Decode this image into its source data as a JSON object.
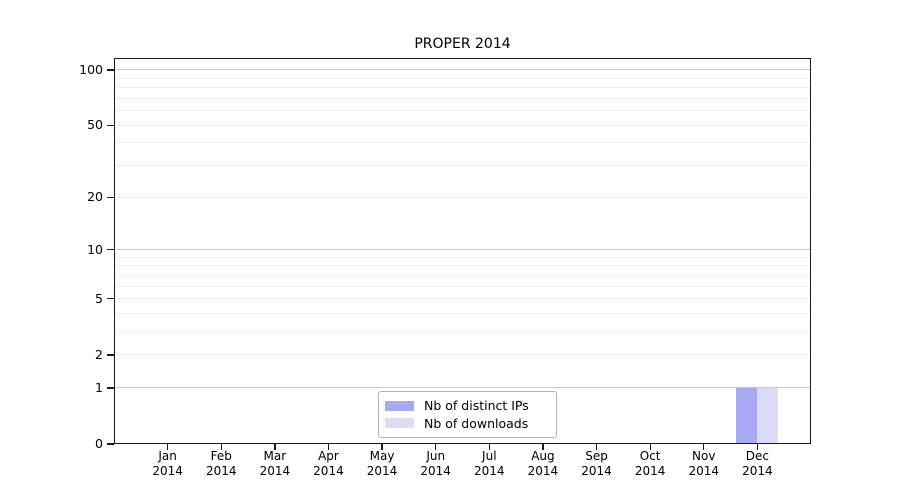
{
  "chart_data": {
    "type": "bar",
    "title": "PROPER 2014",
    "categories": [
      {
        "month": "Jan",
        "year": "2014"
      },
      {
        "month": "Feb",
        "year": "2014"
      },
      {
        "month": "Mar",
        "year": "2014"
      },
      {
        "month": "Apr",
        "year": "2014"
      },
      {
        "month": "May",
        "year": "2014"
      },
      {
        "month": "Jun",
        "year": "2014"
      },
      {
        "month": "Jul",
        "year": "2014"
      },
      {
        "month": "Aug",
        "year": "2014"
      },
      {
        "month": "Sep",
        "year": "2014"
      },
      {
        "month": "Oct",
        "year": "2014"
      },
      {
        "month": "Nov",
        "year": "2014"
      },
      {
        "month": "Dec",
        "year": "2014"
      }
    ],
    "series": [
      {
        "name": "Nb of distinct IPs",
        "color": "#a9a9f3",
        "values": [
          0,
          0,
          0,
          0,
          0,
          0,
          0,
          0,
          0,
          0,
          0,
          1
        ]
      },
      {
        "name": "Nb of downloads",
        "color": "#dcdcf8",
        "values": [
          0,
          0,
          0,
          0,
          0,
          0,
          0,
          0,
          0,
          0,
          0,
          1
        ]
      }
    ],
    "y_axis": {
      "scale": "log1p",
      "tick_values": [
        0,
        1,
        2,
        5,
        10,
        20,
        50,
        100
      ],
      "major_grid_values": [
        1,
        10,
        100
      ],
      "minor_grid_values": [
        2,
        3,
        4,
        5,
        6,
        7,
        8,
        9,
        20,
        30,
        40,
        50,
        60,
        70,
        80,
        90
      ],
      "axis_max_value": 116,
      "ylim": [
        0,
        100
      ]
    },
    "legend": {
      "position": "lower center"
    },
    "grid": true
  },
  "colors": {
    "bar_distinct_ips": "#a9a9f3",
    "bar_downloads": "#dcdcf8",
    "major_grid": "#c8c8c8",
    "minor_grid": "#ededed",
    "axis": "#1a1a1a",
    "legend_border": "#b3b3b3",
    "background": "#ffffff"
  }
}
